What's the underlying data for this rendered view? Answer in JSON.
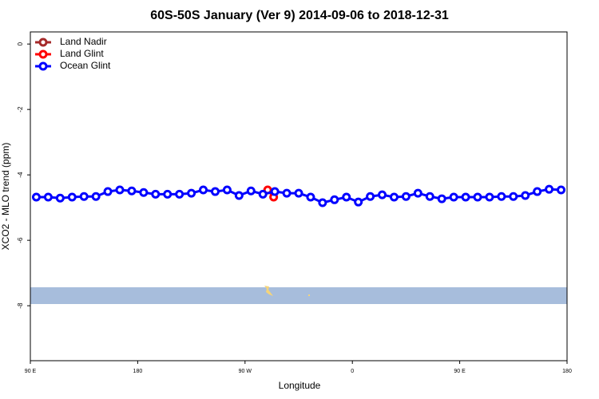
{
  "chart_data": {
    "type": "line",
    "title": "60S-50S January (Ver 9)   2014-09-06 to 2018-12-31",
    "x_label": "Longitude",
    "y_label": "XCO2 - MLO trend (ppm)",
    "xlim": [
      90,
      540
    ],
    "xticks": [
      {
        "value": 90,
        "label": "90 E"
      },
      {
        "value": 180,
        "label": "180"
      },
      {
        "value": 270,
        "label": "90 W"
      },
      {
        "value": 360,
        "label": "0"
      },
      {
        "value": 450,
        "label": "90 E"
      },
      {
        "value": 540,
        "label": "180"
      }
    ],
    "ylim": [
      -9.68,
      0.37
    ],
    "yticks": [
      0,
      -2,
      -4,
      -6,
      -8
    ],
    "legend": "topleft",
    "series": [
      {
        "name": "Land Nadir",
        "color": "#a52a2a",
        "x": [],
        "values": []
      },
      {
        "name": "Land Glint",
        "color": "#ff0000",
        "x": [
          289,
          294
        ],
        "values": [
          -4.46,
          -4.68
        ]
      },
      {
        "name": "Ocean Glint",
        "color": "#0000ff",
        "x": [
          95,
          105,
          115,
          125,
          135,
          145,
          155,
          165,
          175,
          185,
          195,
          205,
          215,
          225,
          235,
          245,
          255,
          265,
          275,
          285,
          295,
          305,
          315,
          325,
          335,
          345,
          355,
          365,
          375,
          385,
          395,
          405,
          415,
          425,
          435,
          445,
          455,
          465,
          475,
          485,
          495,
          505,
          515,
          525,
          535
        ],
        "values": [
          -4.68,
          -4.68,
          -4.71,
          -4.68,
          -4.66,
          -4.66,
          -4.51,
          -4.46,
          -4.49,
          -4.54,
          -4.59,
          -4.59,
          -4.59,
          -4.56,
          -4.46,
          -4.51,
          -4.46,
          -4.63,
          -4.49,
          -4.59,
          -4.51,
          -4.56,
          -4.56,
          -4.68,
          -4.85,
          -4.76,
          -4.68,
          -4.83,
          -4.66,
          -4.61,
          -4.68,
          -4.66,
          -4.56,
          -4.66,
          -4.73,
          -4.68,
          -4.68,
          -4.68,
          -4.68,
          -4.66,
          -4.66,
          -4.63,
          -4.51,
          -4.44,
          -4.46
        ]
      }
    ]
  }
}
